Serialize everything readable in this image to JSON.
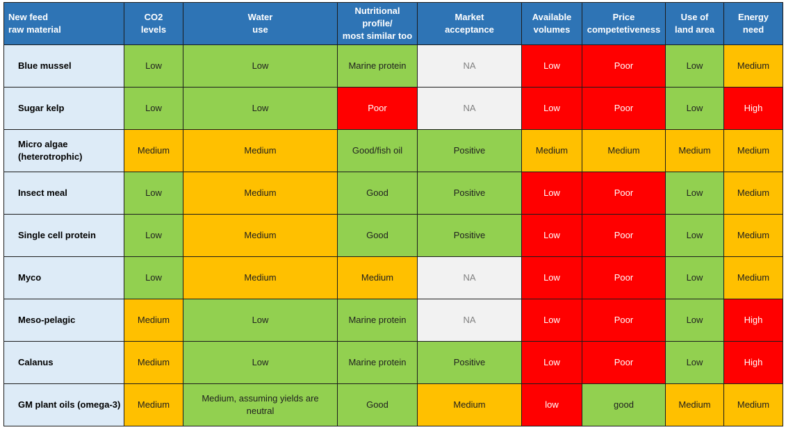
{
  "headers": [
    "New feed\nraw material",
    "CO2\nlevels",
    "Water\nuse",
    "Nutritional\nprofile/\nmost similar too",
    "Market\nacceptance",
    "Available\nvolumes",
    "Price\ncompetetiveness",
    "Use of\nland area",
    "Energy\nneed"
  ],
  "rows": [
    {
      "name": "Blue mussel",
      "cells": [
        "Low",
        "Low",
        "Marine protein",
        "NA",
        "Low",
        "Poor",
        "Low",
        "Medium"
      ]
    },
    {
      "name": "Sugar kelp",
      "cells": [
        "Low",
        "Low",
        "Poor",
        "NA",
        "Low",
        "Poor",
        "Low",
        "High"
      ]
    },
    {
      "name": "Micro algae\n(heterotrophic)",
      "cells": [
        "Medium",
        "Medium",
        "Good/fish oil",
        "Positive",
        "Medium",
        "Medium",
        "Medium",
        "Medium"
      ]
    },
    {
      "name": "Insect meal",
      "cells": [
        "Low",
        "Medium",
        "Good",
        "Positive",
        "Low",
        "Poor",
        "Low",
        "Medium"
      ]
    },
    {
      "name": "Single cell protein",
      "cells": [
        "Low",
        "Medium",
        "Good",
        "Positive",
        "Low",
        "Poor",
        "Low",
        "Medium"
      ]
    },
    {
      "name": "Myco",
      "cells": [
        "Low",
        "Medium",
        "Medium",
        "NA",
        "Low",
        "Poor",
        "Low",
        "Medium"
      ]
    },
    {
      "name": "Meso-pelagic",
      "cells": [
        "Medium",
        "Low",
        "Marine protein",
        "NA",
        "Low",
        "Poor",
        "Low",
        "High"
      ]
    },
    {
      "name": "Calanus",
      "cells": [
        "Medium",
        "Low",
        "Marine protein",
        "Positive",
        "Low",
        "Poor",
        "Low",
        "High"
      ]
    },
    {
      "name": "GM plant oils (omega-3)",
      "cells": [
        "Medium",
        "Medium, assuming yields are\nneutral",
        "Good",
        "Medium",
        "low",
        "good",
        "Medium",
        "Medium"
      ]
    }
  ],
  "cell_colors": [
    [
      "low",
      "low",
      "marine",
      "na",
      "red",
      "poor",
      "low",
      "medium"
    ],
    [
      "low",
      "low",
      "poor",
      "na",
      "red",
      "poor",
      "low",
      "high"
    ],
    [
      "medium",
      "medium",
      "good",
      "positive",
      "medium",
      "medium",
      "medium",
      "medium"
    ],
    [
      "low",
      "medium",
      "good",
      "positive",
      "red",
      "poor",
      "low",
      "medium"
    ],
    [
      "low",
      "medium",
      "good",
      "positive",
      "red",
      "poor",
      "low",
      "medium"
    ],
    [
      "low",
      "medium",
      "medium",
      "na",
      "red",
      "poor",
      "low",
      "medium"
    ],
    [
      "medium",
      "low",
      "marine",
      "na",
      "red",
      "poor",
      "low",
      "high"
    ],
    [
      "medium",
      "low",
      "marine",
      "positive",
      "red",
      "poor",
      "low",
      "high"
    ],
    [
      "medium",
      "good",
      "good",
      "medium",
      "red",
      "good",
      "medium",
      "medium"
    ]
  ],
  "colors": {
    "header_bg": "#2e74b5",
    "name_bg": "#ddebf7",
    "green": "#92d050",
    "amber": "#ffc000",
    "red": "#ff0000",
    "na_bg": "#f2f2f2"
  }
}
